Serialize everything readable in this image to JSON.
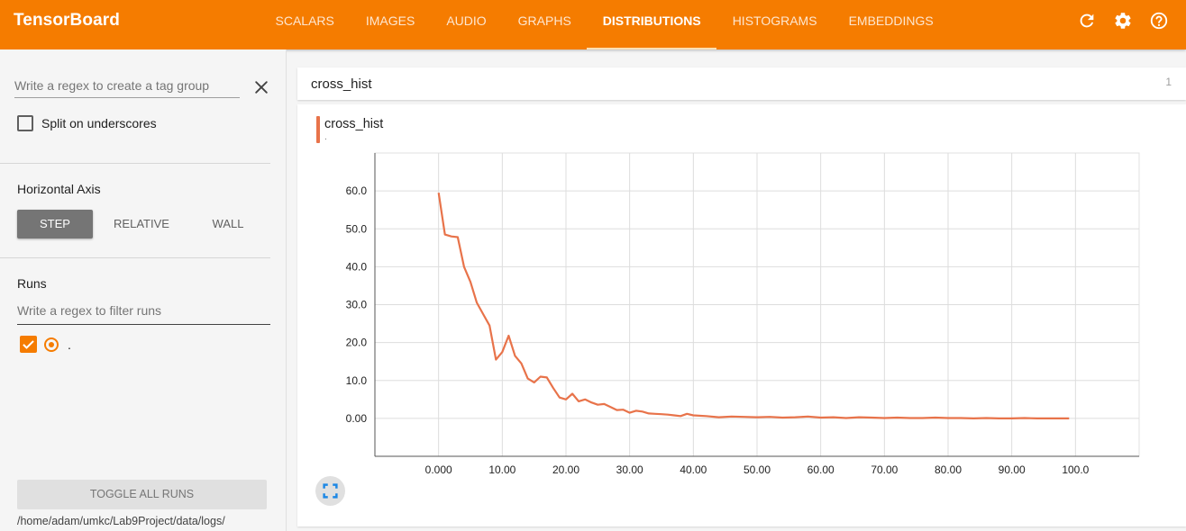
{
  "header": {
    "brand": "TensorBoard",
    "tabs": [
      {
        "label": "SCALARS"
      },
      {
        "label": "IMAGES"
      },
      {
        "label": "AUDIO"
      },
      {
        "label": "GRAPHS"
      },
      {
        "label": "DISTRIBUTIONS",
        "active": true
      },
      {
        "label": "HISTOGRAMS"
      },
      {
        "label": "EMBEDDINGS"
      }
    ],
    "icons": [
      "refresh-icon",
      "settings-icon",
      "help-icon"
    ]
  },
  "sidebar": {
    "tag_group_placeholder": "Write a regex to create a tag group",
    "split_label": "Split on underscores",
    "split_checked": false,
    "horizontal_axis_title": "Horizontal Axis",
    "axis_options": [
      "STEP",
      "RELATIVE",
      "WALL"
    ],
    "axis_selected": "STEP",
    "runs_title": "Runs",
    "run_filter_placeholder": "Write a regex to filter runs",
    "runs": [
      {
        "name": ".",
        "checked": true,
        "color": "#f57c00"
      }
    ],
    "toggle_label": "TOGGLE ALL RUNS",
    "logdir": "/home/adam/umkc/Lab9Project/data/logs/"
  },
  "main": {
    "group_title": "cross_hist",
    "group_count": "1",
    "card_title": "cross_hist",
    "card_subtitle": "."
  },
  "colors": {
    "accent": "#f57c00",
    "series": "#e8734a"
  },
  "chart_data": {
    "type": "line",
    "title": "cross_hist",
    "xlabel": "",
    "ylabel": "",
    "xlim": [
      -10,
      110
    ],
    "ylim": [
      -10,
      70
    ],
    "x_ticks": [
      "0.000",
      "10.00",
      "20.00",
      "30.00",
      "40.00",
      "50.00",
      "60.00",
      "70.00",
      "80.00",
      "90.00",
      "100.0"
    ],
    "x_tick_values": [
      0,
      10,
      20,
      30,
      40,
      50,
      60,
      70,
      80,
      90,
      100
    ],
    "y_ticks": [
      "0.00",
      "10.0",
      "20.0",
      "30.0",
      "40.0",
      "50.0",
      "60.0"
    ],
    "y_tick_values": [
      0,
      10,
      20,
      30,
      40,
      50,
      60
    ],
    "grid": true,
    "series": [
      {
        "color": "#e8734a",
        "x": [
          0,
          1,
          2,
          3,
          4,
          5,
          6,
          7,
          8,
          9,
          10,
          11,
          12,
          13,
          14,
          15,
          16,
          17,
          18,
          19,
          20,
          21,
          22,
          23,
          24,
          25,
          26,
          27,
          28,
          29,
          30,
          31,
          32,
          33,
          34,
          35,
          36,
          37,
          38,
          39,
          40,
          42,
          44,
          46,
          48,
          50,
          52,
          54,
          56,
          58,
          60,
          62,
          64,
          66,
          68,
          70,
          72,
          74,
          76,
          78,
          80,
          82,
          84,
          86,
          88,
          90,
          92,
          94,
          96,
          98,
          99
        ],
        "y": [
          59.5,
          48.5,
          48,
          47.8,
          40,
          36,
          30.5,
          27.5,
          24.5,
          15.5,
          17.5,
          21.8,
          16.5,
          14.5,
          10.5,
          9.5,
          11,
          10.8,
          8,
          5.5,
          5,
          6.5,
          4.5,
          5,
          4.2,
          3.6,
          3.8,
          3,
          2.2,
          2.3,
          1.5,
          2,
          1.8,
          1.3,
          1.2,
          1.1,
          1,
          0.8,
          0.6,
          1.2,
          0.8,
          0.6,
          0.3,
          0.5,
          0.4,
          0.3,
          0.4,
          0.2,
          0.3,
          0.5,
          0.2,
          0.3,
          0.1,
          0.3,
          0.2,
          0.1,
          0.2,
          0.1,
          0.1,
          0.2,
          0.1,
          0.1,
          0,
          0.1,
          0,
          0,
          0.1,
          0,
          0,
          0,
          0
        ]
      }
    ]
  }
}
